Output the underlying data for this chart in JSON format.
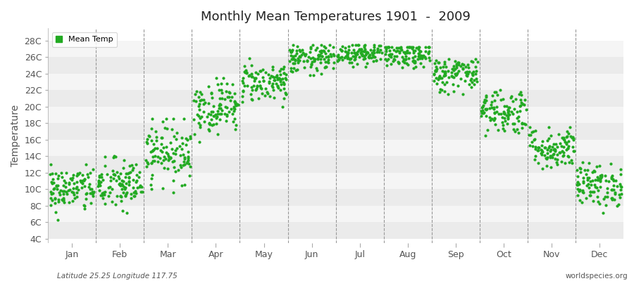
{
  "title": "Monthly Mean Temperatures 1901  -  2009",
  "ylabel": "Temperature",
  "subtitle_left": "Latitude 25.25 Longitude 117.75",
  "subtitle_right": "worldspecies.org",
  "legend_label": "Mean Temp",
  "dot_color": "#22aa22",
  "background_color": "#ffffff",
  "band_colors": [
    "#ebebeb",
    "#f5f5f5"
  ],
  "dashed_line_color": "#999999",
  "ytick_labels": [
    "4C",
    "6C",
    "8C",
    "10C",
    "12C",
    "14C",
    "16C",
    "18C",
    "20C",
    "22C",
    "24C",
    "26C",
    "28C"
  ],
  "ytick_values": [
    4,
    6,
    8,
    10,
    12,
    14,
    16,
    18,
    20,
    22,
    24,
    26,
    28
  ],
  "ylim": [
    3.5,
    29.5
  ],
  "month_names": [
    "Jan",
    "Feb",
    "Mar",
    "Apr",
    "May",
    "Jun",
    "Jul",
    "Aug",
    "Sep",
    "Oct",
    "Nov",
    "Dec"
  ],
  "month_means": [
    10.0,
    10.5,
    14.5,
    20.0,
    23.0,
    25.8,
    26.5,
    26.2,
    24.0,
    19.5,
    15.0,
    10.5
  ],
  "month_stds": [
    1.4,
    1.6,
    1.8,
    1.6,
    1.2,
    0.9,
    0.7,
    0.8,
    1.1,
    1.4,
    1.3,
    1.3
  ],
  "month_mins": [
    4.5,
    5.0,
    8.5,
    15.5,
    20.0,
    23.8,
    24.8,
    24.5,
    21.5,
    16.5,
    12.5,
    6.5
  ],
  "month_maxs": [
    13.0,
    14.5,
    18.5,
    23.5,
    26.0,
    27.5,
    27.5,
    27.2,
    25.8,
    24.5,
    17.5,
    13.5
  ],
  "n_years": 109,
  "seed": 42
}
